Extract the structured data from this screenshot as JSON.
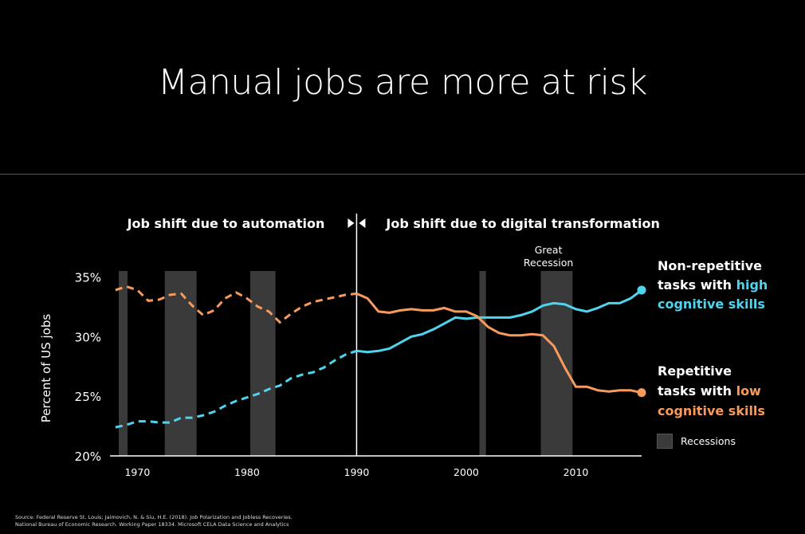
{
  "slide": {
    "title": "Manual jobs are more at risk"
  },
  "source_lines": [
    "Source: Federal Reserve St. Louis; Jaimovich, N. & Siu, H.E. (2018). Job Polarization and Jobless Recoveries.",
    "National Bureau of Economic Research. Working Paper 18334.  Microsoft CELA Data Science and Analytics"
  ],
  "chart_data": {
    "type": "line",
    "title": "Manual jobs are more at risk",
    "ylabel": "Percent of US jobs",
    "xlabel": "",
    "xlim": [
      1967.5,
      2016
    ],
    "ylim": [
      20,
      35.5
    ],
    "x_ticks": [
      1970,
      1980,
      1990,
      2000,
      2010
    ],
    "y_ticks": [
      20,
      25,
      30,
      35
    ],
    "y_tick_labels": [
      "20%",
      "25%",
      "30%",
      "35%"
    ],
    "phase_divider_x": 1990,
    "phase_labels": {
      "left": "Job shift due to automation",
      "right": "Job shift due to digital transformation"
    },
    "annotation": {
      "line1": "Great",
      "line2": "Recession",
      "x": 2007.5
    },
    "recessions": [
      [
        1968.3,
        1969.1
      ],
      [
        1972.5,
        1975.4
      ],
      [
        1980.3,
        1982.6
      ],
      [
        2001.2,
        2001.8
      ],
      [
        2006.8,
        2009.7
      ]
    ],
    "colors": {
      "high": "#4fd4ee",
      "low": "#f79a5c",
      "recession": "#3a3a3a",
      "axis": "#ffffff"
    },
    "series": [
      {
        "name": "Non-repetitive tasks with high cognitive skills",
        "label_lines": [
          "Non-repetitive",
          "tasks with ",
          "high",
          "cognitive skills"
        ],
        "color": "#4fd4ee",
        "x": [
          1968,
          1969,
          1970,
          1971,
          1972,
          1973,
          1974,
          1975,
          1976,
          1977,
          1978,
          1979,
          1980,
          1981,
          1982,
          1983,
          1984,
          1985,
          1986,
          1987,
          1988,
          1989,
          1990,
          1991,
          1992,
          1993,
          1994,
          1995,
          1996,
          1997,
          1998,
          1999,
          2000,
          2001,
          2002,
          2003,
          2004,
          2005,
          2006,
          2007,
          2008,
          2009,
          2010,
          2011,
          2012,
          2013,
          2014,
          2015,
          2016
        ],
        "values": [
          22.4,
          22.6,
          22.9,
          22.9,
          22.8,
          22.8,
          23.2,
          23.2,
          23.4,
          23.7,
          24.2,
          24.6,
          24.9,
          25.2,
          25.6,
          25.9,
          26.5,
          26.8,
          27.0,
          27.4,
          28.0,
          28.5,
          28.8,
          28.7,
          28.8,
          29.0,
          29.5,
          30.0,
          30.2,
          30.6,
          31.1,
          31.6,
          31.5,
          31.6,
          31.6,
          31.6,
          31.6,
          31.8,
          32.1,
          32.6,
          32.8,
          32.7,
          32.3,
          32.1,
          32.4,
          32.8,
          32.8,
          33.2,
          33.9
        ],
        "end_label": ""
      },
      {
        "name": "Repetitive tasks with low cognitive skills",
        "label_lines": [
          "Repetitive",
          "tasks with ",
          "low",
          "cognitive skills"
        ],
        "color": "#f79a5c",
        "x": [
          1968,
          1969,
          1970,
          1971,
          1972,
          1973,
          1974,
          1975,
          1976,
          1977,
          1978,
          1979,
          1980,
          1981,
          1982,
          1983,
          1984,
          1985,
          1986,
          1987,
          1988,
          1989,
          1990,
          1991,
          1992,
          1993,
          1994,
          1995,
          1996,
          1997,
          1998,
          1999,
          2000,
          2001,
          2002,
          2003,
          2004,
          2005,
          2006,
          2007,
          2008,
          2009,
          2010,
          2011,
          2012,
          2013,
          2014,
          2015,
          2016
        ],
        "values": [
          33.9,
          34.2,
          33.9,
          33.0,
          33.1,
          33.5,
          33.6,
          32.6,
          31.8,
          32.2,
          33.2,
          33.7,
          33.2,
          32.5,
          32.1,
          31.2,
          31.9,
          32.5,
          32.9,
          33.1,
          33.3,
          33.5,
          33.6,
          33.2,
          32.1,
          32.0,
          32.2,
          32.3,
          32.2,
          32.2,
          32.4,
          32.1,
          32.1,
          31.7,
          30.8,
          30.3,
          30.1,
          30.1,
          30.2,
          30.1,
          29.2,
          27.4,
          25.8,
          25.8,
          25.5,
          25.4,
          25.5,
          25.5,
          25.3
        ],
        "end_label": ""
      }
    ],
    "legend": {
      "recessions_label": "Recessions"
    }
  }
}
